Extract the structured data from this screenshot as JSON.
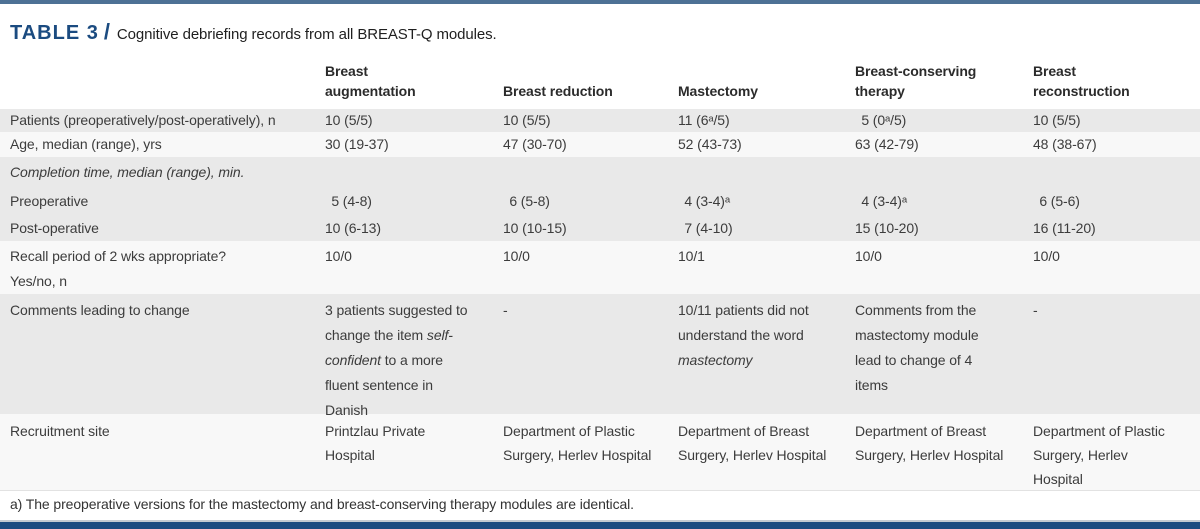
{
  "caption": {
    "label": "TABLE 3",
    "separator": "/",
    "title": "Cognitive debriefing records from all BREAST-Q modules."
  },
  "columns": [
    "Breast augmentation",
    "Breast reduction",
    "Mastectomy",
    "Breast-conserving therapy",
    "Breast reconstruction"
  ],
  "rows": {
    "patients": {
      "label": "Patients (preoperatively/post-operatively), n",
      "values": [
        "10 (5/5)",
        "10 (5/5)",
        "11 (6ᵃ/5)",
        "5 (0ᵃ/5)",
        "10 (5/5)"
      ]
    },
    "age": {
      "label": "Age, median (range), yrs",
      "values": [
        "30 (19-37)",
        "47 (30-70)",
        "52 (43-73)",
        "63 (42-79)",
        "48 (38-67)"
      ]
    },
    "completion": {
      "label": "Completion time, median (range), min."
    },
    "preoperative": {
      "label": "Preoperative",
      "values": [
        "5 (4-8)",
        "6 (5-8)",
        "4 (3-4)ᵃ",
        "4 (3-4)ᵃ",
        "6 (5-6)"
      ]
    },
    "postoperative": {
      "label": "Post-operative",
      "values": [
        "10 (6-13)",
        "10 (10-15)",
        "7 (4-10)",
        "15 (10-20)",
        "16 (11-20)"
      ]
    },
    "recall": {
      "label": "Recall period of 2 wks appropriate?",
      "label_line2": "Yes/no, n",
      "values": [
        "10/0",
        "10/0",
        "10/1",
        "10/0",
        "10/0"
      ]
    },
    "comments": {
      "label": "Comments leading to change",
      "augmentation": {
        "pre": "3 patients suggested to change the item ",
        "emphasis": "self-confident",
        "post": " to a more fluent sentence in Danish"
      },
      "reduction": "-",
      "mastectomy": {
        "pre": "10/11 patients did not understand the word ",
        "emphasis": "mastectomy",
        "post": ""
      },
      "conserving": "Comments from the mastectomy module lead to change of 4 items",
      "reconstruction": "-"
    },
    "recruitment": {
      "label": "Recruitment site",
      "values": [
        "Printzlau Private Hospital",
        "Department of Plastic Surgery, Herlev Hospital",
        "Department of Breast Surgery, Herlev Hospital",
        "Department of Breast Surgery, Herlev Hospital",
        "Department of Plastic Surgery, Herlev Hospital"
      ]
    }
  },
  "footnote": "a) The preoperative versions for the mastectomy and breast-conserving therapy modules are identical.",
  "colors": {
    "accent_navy": "#1b4b80",
    "top_bar": "#4d7195",
    "stripe_gray": "#e9e9e9",
    "stripe_light": "#f8f8f8",
    "body_text": "#3c3c3c"
  }
}
